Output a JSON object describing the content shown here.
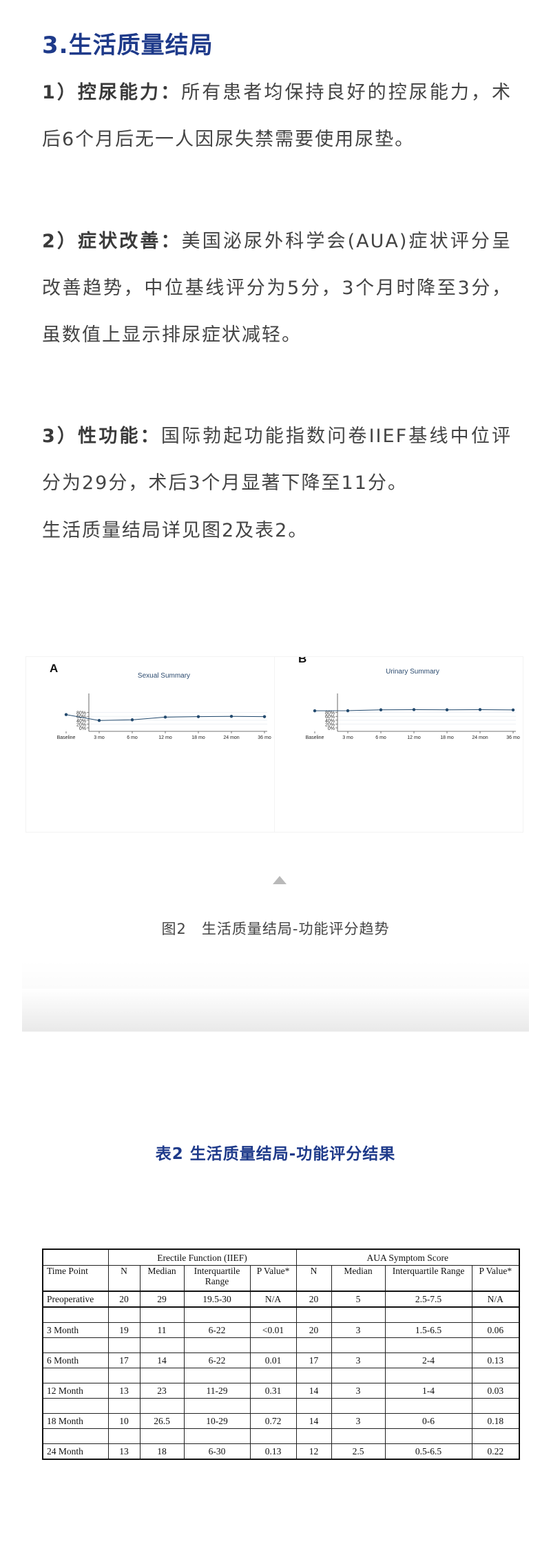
{
  "section_title": "3.生活质量结局",
  "paragraphs": [
    {
      "lead": "1）控尿能力：",
      "text": "所有患者均保持良好的控尿能力，术后6个月后无一人因尿失禁需要使用尿垫。"
    },
    {
      "lead": "2）症状改善：",
      "text": "美国泌尿外科学会(AUA)症状评分呈改善趋势，中位基线评分为5分，3个月时降至3分，虽数值上显示排尿症状减轻。"
    },
    {
      "lead": "3）性功能：",
      "text": "国际勃起功能指数问卷IIEF基线中位评分为29分，术后3个月显著下降至11分。"
    }
  ],
  "closing_text": "生活质量结局详见图2及表2。",
  "chart_data": [
    {
      "type": "line",
      "panel_label": "A",
      "title": "Sexual Summary",
      "categories": [
        "Baseline",
        "3 mo",
        "6 mo",
        "12 mo",
        "18 mo",
        "24 mon",
        "36 mo"
      ],
      "values": [
        69,
        38.5,
        42,
        56,
        58.5,
        60,
        58.5
      ],
      "yticks": [
        "0%",
        "20%",
        "40%",
        "60%",
        "80%"
      ],
      "ylim": [
        0,
        95
      ],
      "grid": true,
      "color": "#234a6e"
    },
    {
      "type": "line",
      "panel_label": "B",
      "title": "Urinary Summary",
      "categories": [
        "Baseline",
        "3 mo",
        "6 mo",
        "12 mo",
        "18 mo",
        "24 mon",
        "36 mo"
      ],
      "values": [
        89,
        89.5,
        94,
        95,
        94,
        95,
        93.5
      ],
      "yticks": [
        "0%",
        "20%",
        "40%",
        "60%",
        "80%"
      ],
      "ylim": [
        0,
        97
      ],
      "grid": true,
      "color": "#234a6e"
    }
  ],
  "figure_caption": "图2　生活质量结局-功能评分趋势",
  "table_title": "表2  生活质量结局-功能评分结果",
  "table": {
    "group_headers": [
      "",
      "Erectile Function (IIEF)",
      "AUA Symptom Score"
    ],
    "columns": [
      "Time Point",
      "N",
      "Median",
      "Interquartile Range",
      "P Value*",
      "N",
      "Median",
      "Interquartile Range",
      "P Value*"
    ],
    "rows": [
      [
        "Preoperative",
        "20",
        "29",
        "19.5-30",
        "N/A",
        "20",
        "5",
        "2.5-7.5",
        "N/A"
      ],
      [
        "3 Month",
        "19",
        "11",
        "6-22",
        "<0.01",
        "20",
        "3",
        "1.5-6.5",
        "0.06"
      ],
      [
        "6 Month",
        "17",
        "14",
        "6-22",
        "0.01",
        "17",
        "3",
        "2-4",
        "0.13"
      ],
      [
        "12 Month",
        "13",
        "23",
        "11-29",
        "0.31",
        "14",
        "3",
        "1-4",
        "0.03"
      ],
      [
        "18 Month",
        "10",
        "26.5",
        "10-29",
        "0.72",
        "14",
        "3",
        "0-6",
        "0.18"
      ],
      [
        "24 Month",
        "13",
        "18",
        "6-30",
        "0.13",
        "12",
        "2.5",
        "0.5-6.5",
        "0.22"
      ]
    ]
  }
}
